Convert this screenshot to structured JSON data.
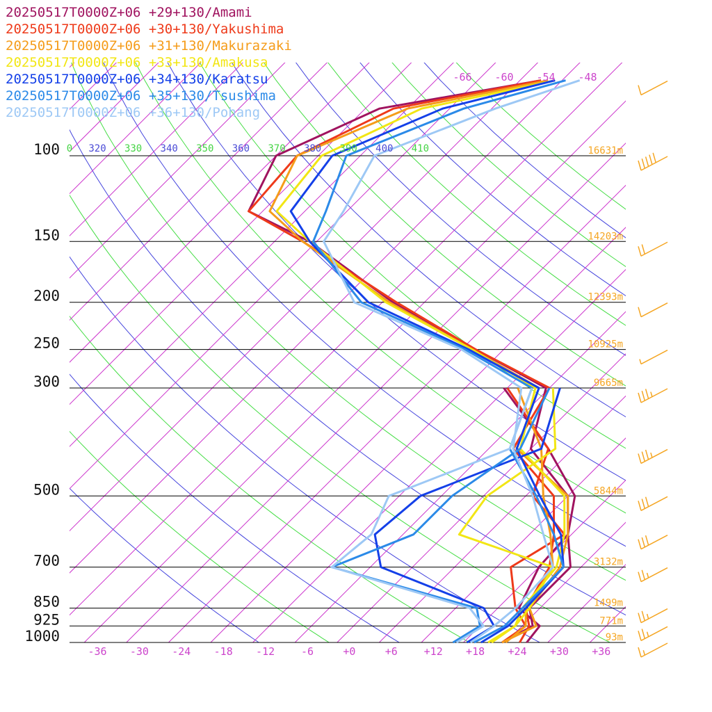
{
  "chart_data": {
    "type": "line",
    "subtype": "skew-T log-P sounding",
    "pressure_levels": [
      100,
      150,
      200,
      250,
      300,
      500,
      700,
      850,
      925,
      1000
    ],
    "temperature_ticks": [
      "-36",
      "-30",
      "-24",
      "-18",
      "-12",
      "-6",
      "+0",
      "+6",
      "+12",
      "+18",
      "+24",
      "+30",
      "+36"
    ],
    "theta_labels": [
      "0",
      "320",
      "330",
      "340",
      "350",
      "360",
      "370",
      "380",
      "390",
      "400",
      "410"
    ],
    "mixing_labels": [
      "-66",
      "-60",
      "-54",
      "-48"
    ],
    "heights": [
      {
        "p": 100,
        "label": "16631m"
      },
      {
        "p": 150,
        "label": "14203m"
      },
      {
        "p": 200,
        "label": "12393m"
      },
      {
        "p": 250,
        "label": "10925m"
      },
      {
        "p": 300,
        "label": "9665m"
      },
      {
        "p": 500,
        "label": "5844m"
      },
      {
        "p": 700,
        "label": "3132m"
      },
      {
        "p": 850,
        "label": "1499m"
      },
      {
        "p": 925,
        "label": "771m"
      },
      {
        "p": 1000,
        "label": "93m"
      }
    ],
    "colors": {
      "isobar": "#000000",
      "isotherm": "#cc33cc",
      "dry_adiabat_a": "#4444dd",
      "dry_adiabat_b": "#44dd44",
      "height_label": "#f5a623",
      "wind_barb": "#f5a623"
    },
    "series": [
      {
        "name": "20250517T0000Z+06 +29+130/Amami",
        "color": "#a0135f",
        "temperature": [
          [
            1000,
            25.0
          ],
          [
            925,
            24.5
          ],
          [
            850,
            19.0
          ],
          [
            700,
            16.0
          ],
          [
            600,
            15.5
          ],
          [
            500,
            10.0
          ],
          [
            400,
            -2.0
          ],
          [
            300,
            -8.5
          ],
          [
            250,
            -24.0
          ],
          [
            200,
            -42.5
          ],
          [
            150,
            -63.0
          ],
          [
            130,
            -76.0
          ],
          [
            100,
            -80.0
          ],
          [
            80,
            -72.0
          ],
          [
            70,
            -53.0
          ]
        ],
        "dewpoint": [
          [
            1000,
            21.5
          ],
          [
            925,
            23.5
          ],
          [
            850,
            20.5
          ],
          [
            700,
            20.5
          ],
          [
            600,
            15.5
          ],
          [
            500,
            11.0
          ],
          [
            400,
            0.5
          ],
          [
            300,
            -14.5
          ]
        ]
      },
      {
        "name": "20250517T0000Z+06 +30+130/Yakushima",
        "color": "#ee3a1a",
        "temperature": [
          [
            1000,
            24.0
          ],
          [
            925,
            23.0
          ],
          [
            850,
            20.0
          ],
          [
            700,
            17.5
          ],
          [
            600,
            13.5
          ],
          [
            500,
            8.0
          ],
          [
            400,
            -4.5
          ],
          [
            300,
            -8.0
          ],
          [
            250,
            -24.0
          ],
          [
            200,
            -42.0
          ],
          [
            150,
            -64.0
          ],
          [
            130,
            -76.0
          ],
          [
            100,
            -77.0
          ],
          [
            80,
            -70.0
          ],
          [
            70,
            -53.0
          ]
        ],
        "dewpoint": [
          [
            1000,
            21.5
          ],
          [
            925,
            22.5
          ],
          [
            850,
            18.5
          ],
          [
            700,
            12.0
          ],
          [
            600,
            15.0
          ],
          [
            500,
            5.0
          ],
          [
            400,
            0.5
          ],
          [
            300,
            -14.0
          ]
        ]
      },
      {
        "name": "20250517T0000Z+06 +31+130/Makurazaki",
        "color": "#f59c1a",
        "temperature": [
          [
            1000,
            21.5
          ],
          [
            925,
            24.0
          ],
          [
            850,
            20.5
          ],
          [
            700,
            19.0
          ],
          [
            600,
            15.5
          ],
          [
            500,
            10.0
          ],
          [
            400,
            -4.0
          ],
          [
            300,
            -9.5
          ],
          [
            250,
            -24.5
          ],
          [
            200,
            -43.0
          ],
          [
            150,
            -64.0
          ],
          [
            130,
            -73.0
          ],
          [
            100,
            -77.0
          ],
          [
            80,
            -68.0
          ],
          [
            70,
            -52.0
          ]
        ],
        "dewpoint": [
          [
            1000,
            22.0
          ],
          [
            925,
            22.5
          ],
          [
            850,
            20.0
          ],
          [
            700,
            18.0
          ],
          [
            600,
            13.0
          ],
          [
            500,
            6.5
          ],
          [
            400,
            -0.5
          ],
          [
            300,
            -12.5
          ]
        ]
      },
      {
        "name": "20250517T0000Z+06 +33+130/Amakusa",
        "color": "#f2e614",
        "temperature": [
          [
            1000,
            19.5
          ],
          [
            925,
            21.0
          ],
          [
            850,
            19.5
          ],
          [
            700,
            18.5
          ],
          [
            600,
            15.0
          ],
          [
            500,
            9.5
          ],
          [
            400,
            -3.5
          ],
          [
            300,
            -10.0
          ],
          [
            250,
            -24.5
          ],
          [
            200,
            -43.5
          ],
          [
            150,
            -63.0
          ],
          [
            130,
            -72.0
          ],
          [
            100,
            -73.5
          ],
          [
            80,
            -66.0
          ],
          [
            70,
            -51.0
          ]
        ],
        "dewpoint": [
          [
            1000,
            20.0
          ],
          [
            925,
            21.0
          ],
          [
            850,
            20.5
          ],
          [
            700,
            18.0
          ],
          [
            600,
            0.0
          ],
          [
            500,
            -1.5
          ],
          [
            400,
            1.5
          ],
          [
            300,
            -7.5
          ]
        ]
      },
      {
        "name": "20250517T0000Z+06 +34+130/Karatsu",
        "color": "#1440e8",
        "temperature": [
          [
            1000,
            18.5
          ],
          [
            925,
            20.0
          ],
          [
            850,
            20.0
          ],
          [
            700,
            19.5
          ],
          [
            600,
            14.5
          ],
          [
            500,
            6.0
          ],
          [
            400,
            -4.0
          ],
          [
            300,
            -9.5
          ],
          [
            250,
            -25.0
          ],
          [
            200,
            -46.0
          ],
          [
            150,
            -63.0
          ],
          [
            130,
            -70.0
          ],
          [
            100,
            -72.0
          ],
          [
            80,
            -63.0
          ],
          [
            70,
            -51.0
          ]
        ],
        "dewpoint": [
          [
            1000,
            16.5
          ],
          [
            925,
            18.0
          ],
          [
            850,
            14.0
          ],
          [
            700,
            -6.5
          ],
          [
            600,
            -12.0
          ],
          [
            500,
            -11.0
          ],
          [
            400,
            -0.5
          ],
          [
            300,
            -6.5
          ]
        ]
      },
      {
        "name": "20250517T0000Z+06 +35+130/Tsushima",
        "color": "#2b8ae8",
        "temperature": [
          [
            1000,
            17.5
          ],
          [
            925,
            19.5
          ],
          [
            850,
            19.5
          ],
          [
            700,
            19.5
          ],
          [
            600,
            13.5
          ],
          [
            500,
            5.5
          ],
          [
            400,
            -5.0
          ],
          [
            300,
            -10.5
          ],
          [
            250,
            -25.5
          ],
          [
            200,
            -47.0
          ],
          [
            150,
            -62.5
          ],
          [
            130,
            -65.0
          ],
          [
            100,
            -70.0
          ],
          [
            80,
            -60.0
          ],
          [
            70,
            -49.5
          ]
        ],
        "dewpoint": [
          [
            1000,
            14.5
          ],
          [
            925,
            16.0
          ],
          [
            850,
            13.0
          ],
          [
            700,
            -13.5
          ],
          [
            600,
            -6.5
          ],
          [
            500,
            -6.5
          ],
          [
            400,
            -3.5
          ],
          [
            300,
            -8.0
          ]
        ]
      },
      {
        "name": "20250517T0000Z+06 +36+130/Pohang",
        "color": "#9dc8f5",
        "temperature": [
          [
            1000,
            17.0
          ],
          [
            925,
            18.0
          ],
          [
            850,
            18.5
          ],
          [
            700,
            18.0
          ],
          [
            600,
            12.0
          ],
          [
            500,
            5.0
          ],
          [
            400,
            -4.5
          ],
          [
            300,
            -12.0
          ],
          [
            250,
            -26.0
          ],
          [
            200,
            -48.0
          ],
          [
            150,
            -61.0
          ],
          [
            130,
            -62.5
          ],
          [
            100,
            -66.0
          ],
          [
            80,
            -55.5
          ],
          [
            70,
            -47.5
          ]
        ],
        "dewpoint": [
          [
            1000,
            15.0
          ],
          [
            925,
            16.5
          ],
          [
            850,
            12.0
          ],
          [
            700,
            -13.5
          ],
          [
            600,
            -12.5
          ],
          [
            500,
            -15.5
          ],
          [
            400,
            -5.0
          ],
          [
            300,
            -10.5
          ]
        ]
      }
    ],
    "wind_barbs": [
      {
        "p": 70,
        "speed_kt": 10
      },
      {
        "p": 100,
        "speed_kt": 50
      },
      {
        "p": 150,
        "speed_kt": 20
      },
      {
        "p": 200,
        "speed_kt": 10
      },
      {
        "p": 250,
        "speed_kt": 5
      },
      {
        "p": 300,
        "speed_kt": 35
      },
      {
        "p": 400,
        "speed_kt": 35
      },
      {
        "p": 500,
        "speed_kt": 30
      },
      {
        "p": 600,
        "speed_kt": 30
      },
      {
        "p": 700,
        "speed_kt": 25
      },
      {
        "p": 850,
        "speed_kt": 25
      },
      {
        "p": 925,
        "speed_kt": 25
      },
      {
        "p": 1000,
        "speed_kt": 15
      }
    ]
  }
}
